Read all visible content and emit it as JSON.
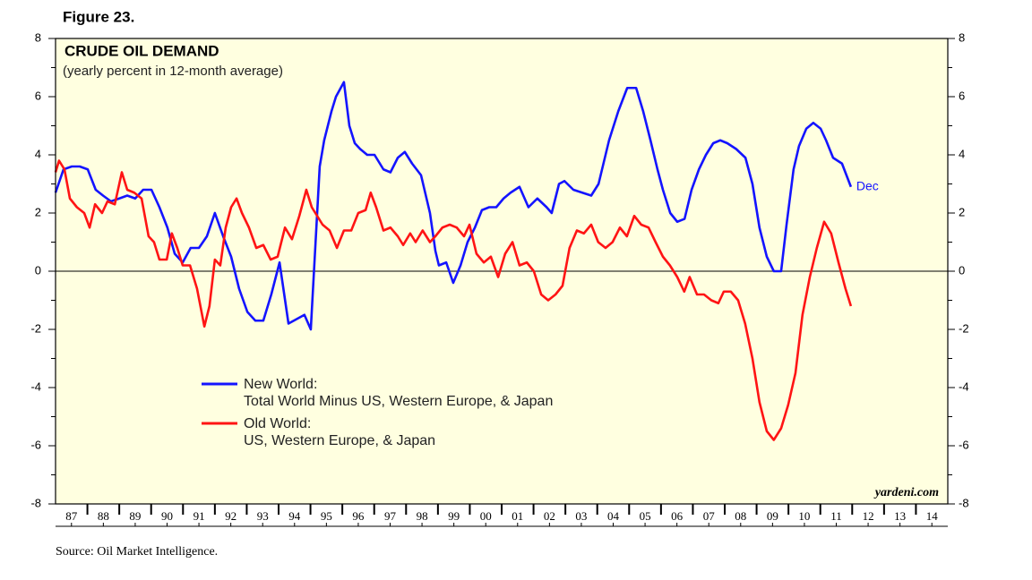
{
  "chart_data": {
    "type": "line",
    "figure_label": "Figure 23.",
    "title": "CRUDE OIL DEMAND",
    "subtitle": "(yearly percent in 12-month average)",
    "annotation": "Dec",
    "watermark": "yardeni.com",
    "source": "Source: Oil Market Intelligence.",
    "background": "#ffffe0",
    "zero_line": true,
    "xlim": [
      1987,
      2015
    ],
    "ylim": [
      -8,
      8
    ],
    "yticks": [
      -8,
      -6,
      -4,
      -2,
      0,
      2,
      4,
      6,
      8
    ],
    "xticks": [
      {
        "value": 1987.5,
        "label": "87"
      },
      {
        "value": 1988.5,
        "label": "88"
      },
      {
        "value": 1989.5,
        "label": "89"
      },
      {
        "value": 1990.5,
        "label": "90"
      },
      {
        "value": 1991.5,
        "label": "91"
      },
      {
        "value": 1992.5,
        "label": "92"
      },
      {
        "value": 1993.5,
        "label": "93"
      },
      {
        "value": 1994.5,
        "label": "94"
      },
      {
        "value": 1995.5,
        "label": "95"
      },
      {
        "value": 1996.5,
        "label": "96"
      },
      {
        "value": 1997.5,
        "label": "97"
      },
      {
        "value": 1998.5,
        "label": "98"
      },
      {
        "value": 1999.5,
        "label": "99"
      },
      {
        "value": 2000.5,
        "label": "00"
      },
      {
        "value": 2001.5,
        "label": "01"
      },
      {
        "value": 2002.5,
        "label": "02"
      },
      {
        "value": 2003.5,
        "label": "03"
      },
      {
        "value": 2004.5,
        "label": "04"
      },
      {
        "value": 2005.5,
        "label": "05"
      },
      {
        "value": 2006.5,
        "label": "06"
      },
      {
        "value": 2007.5,
        "label": "07"
      },
      {
        "value": 2008.5,
        "label": "08"
      },
      {
        "value": 2009.5,
        "label": "09"
      },
      {
        "value": 2010.5,
        "label": "10"
      },
      {
        "value": 2011.5,
        "label": "11"
      },
      {
        "value": 2012.5,
        "label": "12"
      },
      {
        "value": 2013.5,
        "label": "13"
      },
      {
        "value": 2014.5,
        "label": "14"
      }
    ],
    "series": [
      {
        "name": "New World:",
        "description": "Total World Minus US, Western Europe, & Japan",
        "color": "#1414ff",
        "x": [
          1987.0,
          1987.25,
          1987.51,
          1987.76,
          1988.01,
          1988.26,
          1988.49,
          1988.74,
          1989.0,
          1989.25,
          1989.5,
          1989.75,
          1990.01,
          1990.26,
          1990.51,
          1990.74,
          1990.99,
          1991.24,
          1991.5,
          1991.75,
          1992.0,
          1992.26,
          1992.51,
          1992.76,
          1993.02,
          1993.27,
          1993.52,
          1993.77,
          1994.03,
          1994.31,
          1994.81,
          1995.01,
          1995.29,
          1995.43,
          1995.66,
          1995.8,
          1996.05,
          1996.22,
          1996.39,
          1996.56,
          1996.78,
          1997.01,
          1997.29,
          1997.51,
          1997.74,
          1997.96,
          1998.19,
          1998.47,
          1998.75,
          1998.92,
          1999.03,
          1999.26,
          1999.48,
          1999.71,
          1999.93,
          2000.16,
          2000.38,
          2000.61,
          2000.83,
          2001.06,
          2001.28,
          2001.56,
          2001.84,
          2002.12,
          2002.41,
          2002.57,
          2002.8,
          2002.97,
          2003.25,
          2003.53,
          2003.81,
          2004.04,
          2004.37,
          2004.66,
          2004.94,
          2005.22,
          2005.44,
          2005.67,
          2005.89,
          2006.06,
          2006.29,
          2006.51,
          2006.74,
          2006.96,
          2007.19,
          2007.41,
          2007.64,
          2007.86,
          2008.08,
          2008.36,
          2008.65,
          2008.87,
          2009.09,
          2009.32,
          2009.54,
          2009.77,
          2009.94,
          2010.16,
          2010.33,
          2010.56,
          2010.78,
          2011.01,
          2011.18,
          2011.4,
          2011.68,
          2011.96
        ],
        "values": [
          2.7,
          3.5,
          3.6,
          3.6,
          3.5,
          2.8,
          2.6,
          2.4,
          2.5,
          2.6,
          2.5,
          2.8,
          2.8,
          2.2,
          1.5,
          0.6,
          0.3,
          0.8,
          0.8,
          1.2,
          2.0,
          1.2,
          0.5,
          -0.6,
          -1.4,
          -1.7,
          -1.7,
          -0.8,
          0.3,
          -1.8,
          -1.5,
          -2.0,
          3.6,
          4.5,
          5.5,
          6.0,
          6.5,
          5.0,
          4.4,
          4.2,
          4.0,
          4.0,
          3.5,
          3.4,
          3.9,
          4.1,
          3.7,
          3.3,
          2.0,
          0.7,
          0.2,
          0.3,
          -0.4,
          0.2,
          1.0,
          1.5,
          2.1,
          2.2,
          2.2,
          2.5,
          2.7,
          2.9,
          2.2,
          2.5,
          2.2,
          2.0,
          3.0,
          3.1,
          2.8,
          2.7,
          2.6,
          3.0,
          4.5,
          5.5,
          6.3,
          6.3,
          5.5,
          4.5,
          3.5,
          2.8,
          2.0,
          1.7,
          1.8,
          2.8,
          3.5,
          4.0,
          4.4,
          4.5,
          4.4,
          4.2,
          3.9,
          3.0,
          1.5,
          0.5,
          0.0,
          0.0,
          1.6,
          3.5,
          4.3,
          4.9,
          5.1,
          4.9,
          4.5,
          3.9,
          3.7,
          2.9
        ]
      },
      {
        "name": "Old World:",
        "description": "US, Western Europe, & Japan",
        "color": "#ff1414",
        "x": [
          1987.0,
          1987.11,
          1987.28,
          1987.45,
          1987.67,
          1987.9,
          1988.07,
          1988.24,
          1988.46,
          1988.63,
          1988.86,
          1989.08,
          1989.25,
          1989.47,
          1989.7,
          1989.92,
          1990.09,
          1990.26,
          1990.49,
          1990.65,
          1990.82,
          1990.99,
          1991.22,
          1991.44,
          1991.67,
          1991.83,
          1992.0,
          1992.17,
          1992.34,
          1992.51,
          1992.68,
          1992.85,
          1993.07,
          1993.3,
          1993.52,
          1993.75,
          1993.97,
          1994.2,
          1994.42,
          1994.65,
          1994.87,
          1995.04,
          1995.21,
          1995.38,
          1995.6,
          1995.83,
          1996.05,
          1996.28,
          1996.5,
          1996.73,
          1996.89,
          1997.06,
          1997.29,
          1997.51,
          1997.74,
          1997.91,
          1998.13,
          1998.3,
          1998.52,
          1998.75,
          1998.92,
          1999.14,
          1999.37,
          1999.59,
          1999.82,
          1999.99,
          2000.21,
          2000.44,
          2000.66,
          2000.89,
          2001.11,
          2001.34,
          2001.56,
          2001.79,
          2002.01,
          2002.24,
          2002.46,
          2002.69,
          2002.91,
          2003.13,
          2003.36,
          2003.58,
          2003.81,
          2004.03,
          2004.26,
          2004.48,
          2004.71,
          2004.93,
          2005.16,
          2005.38,
          2005.61,
          2005.83,
          2006.06,
          2006.28,
          2006.51,
          2006.73,
          2006.9,
          2007.13,
          2007.35,
          2007.58,
          2007.8,
          2007.97,
          2008.19,
          2008.42,
          2008.64,
          2008.87,
          2009.09,
          2009.32,
          2009.54,
          2009.77,
          2009.99,
          2010.22,
          2010.44,
          2010.67,
          2010.89,
          2011.12,
          2011.34,
          2011.57,
          2011.79,
          2011.96
        ],
        "values": [
          3.4,
          3.8,
          3.5,
          2.5,
          2.2,
          2.0,
          1.5,
          2.3,
          2.0,
          2.4,
          2.3,
          3.4,
          2.8,
          2.7,
          2.5,
          1.2,
          1.0,
          0.4,
          0.4,
          1.3,
          0.8,
          0.2,
          0.2,
          -0.6,
          -1.9,
          -1.2,
          0.4,
          0.2,
          1.5,
          2.2,
          2.5,
          2.0,
          1.5,
          0.8,
          0.9,
          0.4,
          0.5,
          1.5,
          1.1,
          1.9,
          2.8,
          2.2,
          1.9,
          1.6,
          1.4,
          0.8,
          1.4,
          1.4,
          2.0,
          2.1,
          2.7,
          2.2,
          1.4,
          1.5,
          1.2,
          0.9,
          1.3,
          1.0,
          1.4,
          1.0,
          1.2,
          1.5,
          1.6,
          1.5,
          1.2,
          1.6,
          0.6,
          0.3,
          0.5,
          -0.2,
          0.6,
          1.0,
          0.2,
          0.3,
          0.0,
          -0.8,
          -1.0,
          -0.8,
          -0.5,
          0.8,
          1.4,
          1.3,
          1.6,
          1.0,
          0.8,
          1.0,
          1.5,
          1.2,
          1.9,
          1.6,
          1.5,
          1.0,
          0.5,
          0.2,
          -0.2,
          -0.7,
          -0.2,
          -0.8,
          -0.8,
          -1.0,
          -1.1,
          -0.7,
          -0.7,
          -1.0,
          -1.8,
          -3.0,
          -4.5,
          -5.5,
          -5.8,
          -5.4,
          -4.6,
          -3.5,
          -1.5,
          -0.2,
          0.8,
          1.7,
          1.3,
          0.3,
          -0.6,
          -1.2
        ]
      }
    ]
  }
}
